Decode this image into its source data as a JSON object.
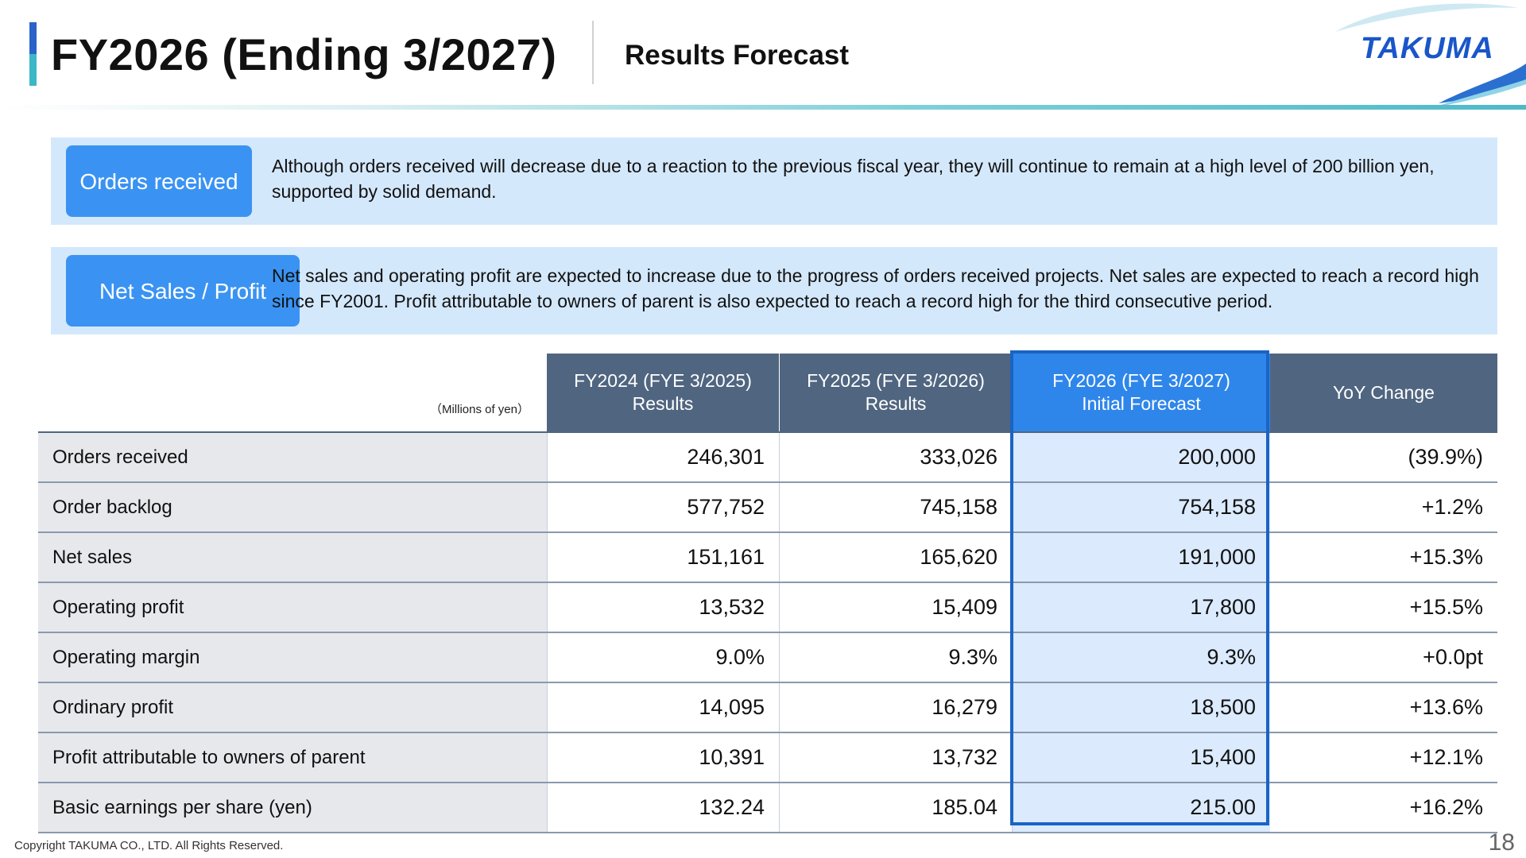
{
  "header": {
    "title": "FY2026 (Ending 3/2027)",
    "subtitle": "Results Forecast",
    "logo": "TAKUMA"
  },
  "info": [
    {
      "badge": "Orders received",
      "text": "Although orders received will decrease due to a reaction to the previous fiscal year, they will continue to remain at a high level of 200 billion yen, supported by solid demand."
    },
    {
      "badge": "Net Sales / Profit",
      "text": "Net sales and operating profit are expected to increase due to the progress of orders received projects. Net sales are expected to reach a record high since FY2001. Profit attributable to owners of parent is also expected to reach a record high for the third consecutive period."
    }
  ],
  "table": {
    "units": "（Millions of yen）",
    "columns": [
      {
        "line1": "FY2024 (FYE 3/2025)",
        "line2": "Results"
      },
      {
        "line1": "FY2025 (FYE 3/2026)",
        "line2": "Results"
      },
      {
        "line1": "FY2026 (FYE 3/2027)",
        "line2": "Initial Forecast"
      },
      {
        "line1": "YoY Change",
        "line2": ""
      }
    ],
    "rows": [
      {
        "label": "Orders received",
        "values": [
          "246,301",
          "333,026",
          "200,000",
          "(39.9%)"
        ]
      },
      {
        "label": "Order backlog",
        "values": [
          "577,752",
          "745,158",
          "754,158",
          "+1.2%"
        ]
      },
      {
        "label": "Net sales",
        "values": [
          "151,161",
          "165,620",
          "191,000",
          "+15.3%"
        ]
      },
      {
        "label": "Operating profit",
        "values": [
          "13,532",
          "15,409",
          "17,800",
          "+15.5%"
        ]
      },
      {
        "label": "Operating margin",
        "values": [
          "9.0%",
          "9.3%",
          "9.3%",
          "+0.0pt"
        ]
      },
      {
        "label": "Ordinary profit",
        "values": [
          "14,095",
          "16,279",
          "18,500",
          "+13.6%"
        ]
      },
      {
        "label": "Profit attributable to owners of parent",
        "values": [
          "10,391",
          "13,732",
          "15,400",
          "+12.1%"
        ]
      },
      {
        "label": "Basic earnings per share (yen)",
        "values": [
          "132.24",
          "185.04",
          "215.00",
          "+16.2%"
        ]
      }
    ]
  },
  "footer": {
    "copyright": "Copyright  TAKUMA CO., LTD.  All Rights Reserved.",
    "page": "18"
  },
  "colors": {
    "accent": "#1a64c4",
    "header_fill": "#506580",
    "badge": "#3a93f2",
    "info_bg": "#d4e8fb"
  }
}
